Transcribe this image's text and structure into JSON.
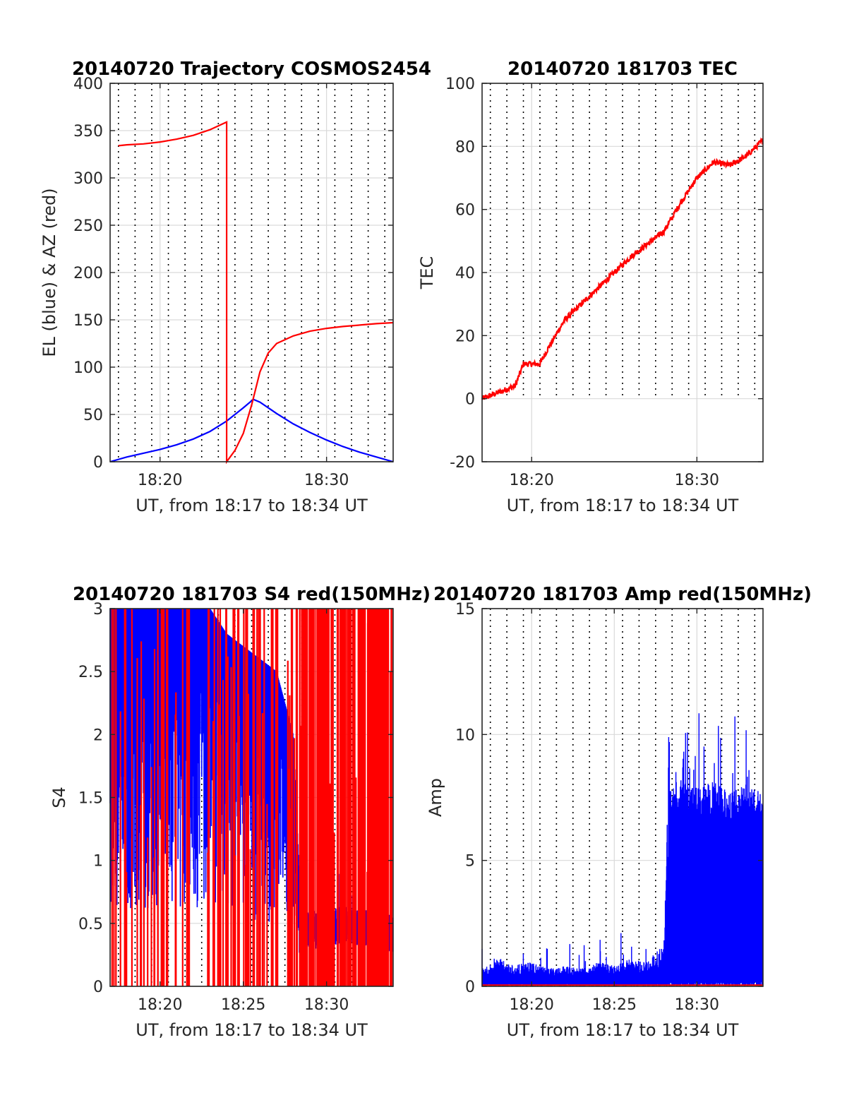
{
  "colors": {
    "el": "#0000ff",
    "az": "#ff0000",
    "grid": "#d9d9d9",
    "axis": "#262626",
    "dotted": "#000000"
  },
  "chart_data": [
    {
      "type": "line",
      "title": "20140720 Trajectory COSMOS2454",
      "xlabel": "UT, from 18:17 to 18:34 UT",
      "ylabel": "EL (blue) & AZ (red)",
      "xlim": [
        "18:17",
        "18:34"
      ],
      "ylim": [
        0,
        400
      ],
      "xticks": [
        "18:20",
        "18:30"
      ],
      "yticks": [
        0,
        50,
        100,
        150,
        200,
        250,
        300,
        350,
        400
      ],
      "grid": true,
      "minute_dotted_lines": true,
      "series": [
        {
          "color": "blue",
          "x": [
            "18:17",
            "18:18",
            "18:19",
            "18:20",
            "18:21",
            "18:22",
            "18:23",
            "18:24",
            "18:25",
            "18:25.6",
            "18:26",
            "18:27",
            "18:28",
            "18:29",
            "18:30",
            "18:31",
            "18:32",
            "18:33",
            "18:34"
          ],
          "values": [
            0,
            5,
            9,
            13,
            18,
            24,
            32,
            43,
            57,
            66,
            63,
            51,
            40,
            31,
            23,
            16,
            10,
            5,
            0
          ]
        },
        {
          "color": "red",
          "x": [
            "18:17.5",
            "18:18",
            "18:19",
            "18:20",
            "18:21",
            "18:22",
            "18:23",
            "18:24",
            "18:24",
            "18:24.5",
            "18:25",
            "18:25.5",
            "18:26",
            "18:26.5",
            "18:27",
            "18:28",
            "18:29",
            "18:30",
            "18:31",
            "18:32",
            "18:33",
            "18:34"
          ],
          "values": [
            334,
            335,
            336,
            338,
            341,
            345,
            351,
            359,
            0,
            12,
            30,
            60,
            95,
            115,
            125,
            133,
            138,
            141,
            143,
            144.5,
            146,
            147
          ]
        }
      ]
    },
    {
      "type": "line",
      "title": "20140720 181703 TEC",
      "xlabel": "UT, from 18:17 to 18:34 UT",
      "ylabel": "TEC",
      "xlim": [
        "18:17",
        "18:34"
      ],
      "ylim": [
        -20,
        100
      ],
      "xticks": [
        "18:20",
        "18:30"
      ],
      "yticks": [
        -20,
        0,
        20,
        40,
        60,
        80,
        100
      ],
      "grid": true,
      "minute_dotted_lines": true,
      "series": [
        {
          "color": "red",
          "x": [
            "18:17",
            "18:18",
            "18:19",
            "18:19.5",
            "18:20",
            "18:20.5",
            "18:21",
            "18:22",
            "18:23",
            "18:24",
            "18:25",
            "18:26",
            "18:27",
            "18:28",
            "18:29",
            "18:30",
            "18:31",
            "18:32",
            "18:33",
            "18:34"
          ],
          "values": [
            0,
            2,
            4,
            11,
            11,
            11,
            16,
            25,
            30,
            35,
            40,
            45,
            49,
            53,
            62,
            70,
            75,
            74,
            77,
            82
          ]
        }
      ]
    },
    {
      "type": "line",
      "title": "20140720 181703 S4 red(150MHz)",
      "xlabel": "UT, from 18:17 to 18:34 UT",
      "ylabel": "S4",
      "xlim": [
        "18:17",
        "18:34"
      ],
      "ylim": [
        0,
        3
      ],
      "xticks": [
        "18:20",
        "18:25",
        "18:30"
      ],
      "yticks": [
        0,
        0.5,
        1,
        1.5,
        2,
        2.5,
        3
      ],
      "grid": true,
      "minute_dotted_lines": true,
      "series": [
        {
          "color": "blue",
          "x": [
            "18:17",
            "18:18",
            "18:19",
            "18:20",
            "18:21",
            "18:22",
            "18:23",
            "18:24",
            "18:25",
            "18:26",
            "18:27",
            "18:28",
            "18:28.5",
            "18:29",
            "18:30",
            "18:31",
            "18:32",
            "18:33",
            "18:34"
          ],
          "values": [
            3,
            3,
            3,
            3,
            3,
            3,
            3,
            2.8,
            2.7,
            2.6,
            2.5,
            2.0,
            0.45,
            0.45,
            0.45,
            0.5,
            0.45,
            0.5,
            0.4
          ]
        },
        {
          "color": "red",
          "x": [
            "18:17",
            "18:34"
          ],
          "values": [
            0,
            3
          ]
        }
      ]
    },
    {
      "type": "line",
      "title": "20140720 181703 Amp red(150MHz)",
      "xlabel": "UT, from 18:17 to 18:34 UT",
      "ylabel": "Amp",
      "xlim": [
        "18:17",
        "18:34"
      ],
      "ylim": [
        0,
        15
      ],
      "xticks": [
        "18:20",
        "18:25",
        "18:30"
      ],
      "yticks": [
        0,
        5,
        10,
        15
      ],
      "grid": true,
      "minute_dotted_lines": true,
      "series": [
        {
          "color": "blue",
          "x": [
            "18:17",
            "18:18",
            "18:19",
            "18:20",
            "18:21",
            "18:22",
            "18:23",
            "18:24",
            "18:25",
            "18:26",
            "18:27",
            "18:28",
            "18:28.3",
            "18:29",
            "18:30",
            "18:31",
            "18:32",
            "18:33",
            "18:34"
          ],
          "values": [
            0.5,
            0.8,
            0.6,
            0.7,
            0.5,
            0.6,
            0.5,
            0.7,
            0.6,
            0.8,
            0.7,
            1.2,
            7.0,
            7.5,
            7.2,
            7.4,
            7.0,
            7.3,
            7.0
          ]
        },
        {
          "color": "red",
          "x": [
            "18:17",
            "18:34"
          ],
          "values": [
            0,
            0.1
          ]
        }
      ]
    }
  ]
}
